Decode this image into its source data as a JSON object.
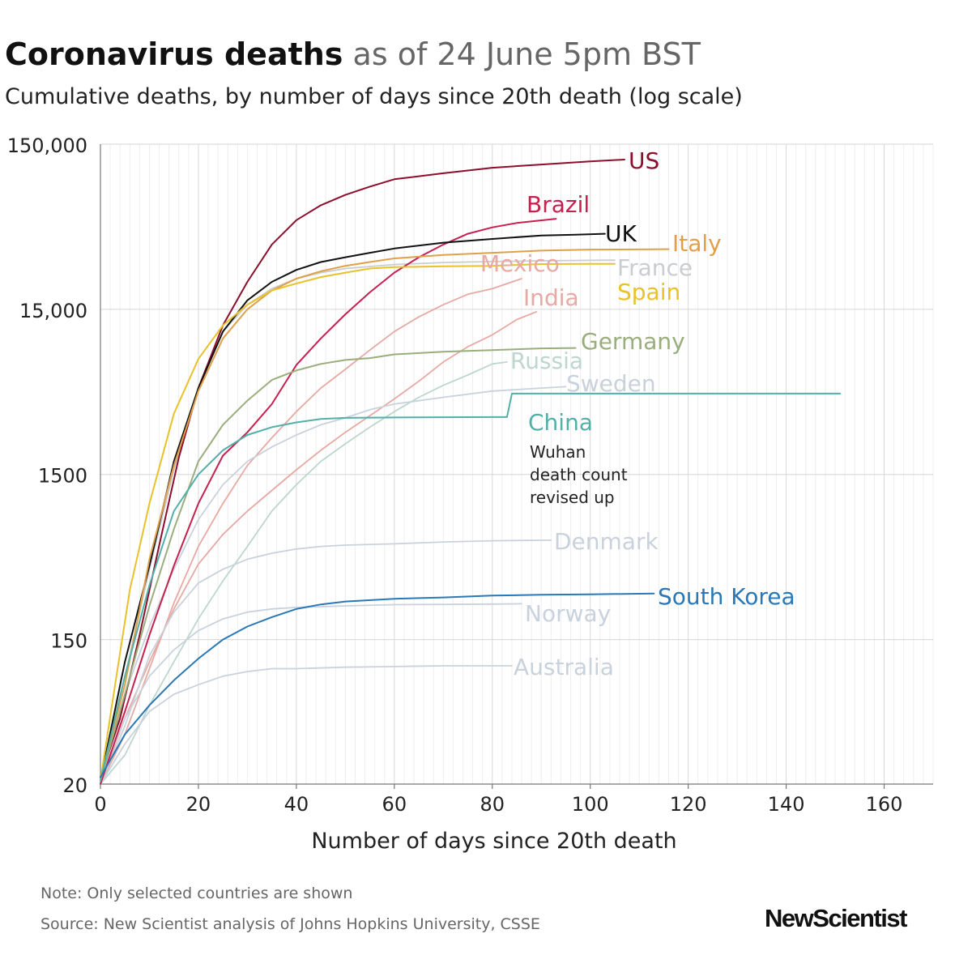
{
  "header": {
    "title_bold": "Coronavirus deaths",
    "title_light": "as of 24 June 5pm BST",
    "subtitle": "Cumulative deaths, by number of days since 20th death (log scale)"
  },
  "footer": {
    "note": "Note: Only selected countries are shown",
    "source": "Source: New Scientist analysis of Johns Hopkins University, CSSE",
    "logo": "NewScientist"
  },
  "chart_data": {
    "type": "line",
    "title": "Coronavirus deaths as of 24 June 5pm BST",
    "subtitle": "Cumulative deaths, by number of days since 20th death (log scale)",
    "xlabel": "Number of days since 20th death",
    "ylabel": "",
    "xlim": [
      0,
      170
    ],
    "ylim": [
      20,
      150000
    ],
    "yscale": "log",
    "x_ticks": [
      0,
      20,
      40,
      60,
      80,
      100,
      120,
      140,
      160
    ],
    "x_tick_labels": [
      "0",
      "20",
      "40",
      "60",
      "80",
      "100",
      "120",
      "140",
      "160"
    ],
    "y_ticks": [
      20,
      150,
      1500,
      15000,
      150000
    ],
    "y_tick_labels": [
      "20",
      "150",
      "1500",
      "15,000",
      "150,000"
    ],
    "grid": true,
    "annotation": "Wuhan death count revised up",
    "series": [
      {
        "name": "US",
        "color": "#8b0f2c",
        "highlight": true,
        "x": [
          0,
          4,
          8,
          12,
          16,
          20,
          25,
          30,
          35,
          40,
          45,
          50,
          55,
          60,
          70,
          80,
          90,
          100,
          107
        ],
        "values": [
          22,
          50,
          160,
          560,
          1900,
          5000,
          12000,
          22000,
          37000,
          52000,
          64000,
          74000,
          83000,
          92000,
          100000,
          108000,
          113000,
          118000,
          121000
        ]
      },
      {
        "name": "Brazil",
        "color": "#c6204f",
        "highlight": true,
        "x": [
          0,
          5,
          10,
          15,
          20,
          25,
          30,
          35,
          40,
          45,
          50,
          55,
          60,
          65,
          70,
          75,
          80,
          85,
          93
        ],
        "values": [
          20,
          55,
          160,
          420,
          1000,
          1950,
          2700,
          4000,
          6900,
          10000,
          14000,
          19000,
          25000,
          31000,
          37000,
          43000,
          47000,
          50000,
          53000
        ]
      },
      {
        "name": "UK",
        "color": "#111111",
        "highlight": true,
        "x": [
          0,
          5,
          10,
          15,
          20,
          25,
          30,
          35,
          40,
          45,
          50,
          55,
          60,
          70,
          80,
          90,
          97,
          103
        ],
        "values": [
          21,
          110,
          420,
          1800,
          5000,
          11000,
          17000,
          22000,
          26000,
          29000,
          31000,
          33000,
          35000,
          38000,
          40000,
          42000,
          42500,
          43000
        ]
      },
      {
        "name": "Italy",
        "color": "#e0a04a",
        "highlight": true,
        "x": [
          0,
          5,
          10,
          15,
          20,
          25,
          30,
          35,
          40,
          45,
          50,
          55,
          60,
          70,
          80,
          90,
          100,
          110,
          116
        ],
        "values": [
          21,
          80,
          460,
          1700,
          4800,
          10000,
          15000,
          19500,
          23000,
          25500,
          27500,
          29000,
          30500,
          32000,
          33000,
          34000,
          34500,
          34600,
          34700
        ]
      },
      {
        "name": "France",
        "color": "#c9cdd2",
        "highlight": false,
        "x": [
          0,
          5,
          10,
          15,
          20,
          25,
          30,
          35,
          40,
          45,
          50,
          60,
          70,
          80,
          90,
          100,
          105
        ],
        "values": [
          22,
          90,
          400,
          1600,
          5000,
          11000,
          16000,
          20000,
          23000,
          25000,
          26500,
          28000,
          28800,
          29200,
          29500,
          29700,
          29750
        ]
      },
      {
        "name": "Spain",
        "color": "#e8c22a",
        "highlight": true,
        "x": [
          0,
          3,
          6,
          10,
          15,
          20,
          25,
          30,
          35,
          40,
          45,
          50,
          55,
          60,
          70,
          80,
          90,
          100,
          105
        ],
        "values": [
          21,
          80,
          300,
          1000,
          3500,
          7500,
          12000,
          16000,
          19500,
          21500,
          23500,
          25000,
          26500,
          27000,
          27300,
          27500,
          28200,
          28300,
          28300
        ]
      },
      {
        "name": "Mexico",
        "color": "#e7a9a3",
        "highlight": false,
        "x": [
          0,
          5,
          10,
          15,
          20,
          25,
          30,
          35,
          40,
          45,
          50,
          55,
          60,
          65,
          70,
          75,
          80,
          86
        ],
        "values": [
          20,
          40,
          100,
          250,
          550,
          1000,
          1700,
          2500,
          3600,
          5000,
          6500,
          8500,
          11000,
          13500,
          16000,
          18500,
          20000,
          23000
        ]
      },
      {
        "name": "India",
        "color": "#e7a9a3",
        "highlight": false,
        "x": [
          0,
          5,
          10,
          15,
          20,
          25,
          30,
          35,
          40,
          45,
          50,
          55,
          60,
          65,
          70,
          75,
          80,
          85,
          89
        ],
        "values": [
          20,
          50,
          110,
          230,
          430,
          650,
          900,
          1200,
          1600,
          2100,
          2700,
          3400,
          4300,
          5500,
          7200,
          8900,
          10500,
          13000,
          14500
        ]
      },
      {
        "name": "Germany",
        "color": "#9aae7d",
        "highlight": true,
        "x": [
          0,
          5,
          10,
          15,
          20,
          25,
          30,
          35,
          40,
          45,
          50,
          55,
          60,
          70,
          80,
          90,
          97
        ],
        "values": [
          21,
          70,
          240,
          700,
          1800,
          3000,
          4200,
          5600,
          6400,
          7000,
          7400,
          7600,
          8000,
          8300,
          8500,
          8700,
          8750
        ]
      },
      {
        "name": "Russia",
        "color": "#bdd6cf",
        "highlight": false,
        "x": [
          0,
          5,
          10,
          15,
          20,
          25,
          30,
          35,
          40,
          45,
          50,
          55,
          60,
          65,
          70,
          75,
          80,
          83
        ],
        "values": [
          20,
          30,
          60,
          110,
          200,
          340,
          550,
          900,
          1300,
          1800,
          2300,
          2900,
          3600,
          4400,
          5200,
          6000,
          7000,
          7200
        ]
      },
      {
        "name": "Sweden",
        "color": "#c9d2dc",
        "highlight": false,
        "x": [
          0,
          5,
          10,
          15,
          20,
          25,
          30,
          35,
          40,
          45,
          50,
          55,
          60,
          70,
          80,
          90,
          95
        ],
        "values": [
          20,
          70,
          180,
          400,
          800,
          1300,
          1800,
          2200,
          2600,
          3000,
          3300,
          3700,
          4000,
          4400,
          4800,
          5000,
          5100
        ]
      },
      {
        "name": "China",
        "color": "#52b0a8",
        "highlight": true,
        "x": [
          0,
          5,
          10,
          15,
          20,
          25,
          30,
          35,
          40,
          45,
          50,
          60,
          70,
          80,
          83,
          84,
          85,
          100,
          120,
          140,
          151
        ],
        "values": [
          21,
          90,
          320,
          900,
          1500,
          2100,
          2600,
          2900,
          3100,
          3250,
          3300,
          3320,
          3330,
          3340,
          3340,
          4630,
          4630,
          4630,
          4630,
          4630,
          4630
        ]
      },
      {
        "name": "Denmark",
        "color": "#c9d2dc",
        "highlight": false,
        "x": [
          0,
          5,
          10,
          15,
          20,
          25,
          30,
          35,
          40,
          45,
          50,
          60,
          70,
          80,
          92
        ],
        "values": [
          20,
          45,
          120,
          220,
          330,
          400,
          460,
          500,
          530,
          550,
          560,
          570,
          585,
          595,
          600
        ]
      },
      {
        "name": "South Korea",
        "color": "#2a78b5",
        "highlight": true,
        "x": [
          0,
          5,
          10,
          15,
          20,
          25,
          30,
          35,
          40,
          45,
          50,
          60,
          70,
          80,
          90,
          100,
          113
        ],
        "values": [
          22,
          40,
          60,
          85,
          115,
          150,
          180,
          205,
          230,
          245,
          255,
          265,
          270,
          277,
          280,
          282,
          285
        ]
      },
      {
        "name": "Norway",
        "color": "#c9d2dc",
        "highlight": false,
        "x": [
          0,
          5,
          10,
          15,
          20,
          25,
          30,
          35,
          40,
          50,
          60,
          70,
          80,
          86
        ],
        "values": [
          21,
          50,
          90,
          130,
          170,
          200,
          220,
          230,
          235,
          240,
          244,
          245,
          246,
          247
        ]
      },
      {
        "name": "Australia",
        "color": "#c9d2dc",
        "highlight": false,
        "x": [
          0,
          5,
          10,
          15,
          20,
          25,
          30,
          35,
          40,
          50,
          60,
          70,
          80,
          84
        ],
        "values": [
          20,
          35,
          55,
          70,
          80,
          90,
          96,
          100,
          100,
          102,
          103,
          104,
          104,
          104
        ]
      }
    ],
    "labels": [
      {
        "text": "US",
        "color": "#8b0f2c"
      },
      {
        "text": "Brazil",
        "color": "#c6204f"
      },
      {
        "text": "UK",
        "color": "#111111"
      },
      {
        "text": "Italy",
        "color": "#e0a04a"
      },
      {
        "text": "Mexico",
        "color": "#e7a9a3"
      },
      {
        "text": "France",
        "color": "#c9cdd2"
      },
      {
        "text": "Spain",
        "color": "#e8c22a"
      },
      {
        "text": "India",
        "color": "#e7a9a3"
      },
      {
        "text": "Germany",
        "color": "#9aae7d"
      },
      {
        "text": "Russia",
        "color": "#bdd6cf"
      },
      {
        "text": "Sweden",
        "color": "#c9d2dc"
      },
      {
        "text": "China",
        "color": "#52b0a8"
      },
      {
        "text": "Denmark",
        "color": "#c9d2dc"
      },
      {
        "text": "South Korea",
        "color": "#2a78b5"
      },
      {
        "text": "Norway",
        "color": "#c9d2dc"
      },
      {
        "text": "Australia",
        "color": "#c9d2dc"
      }
    ]
  }
}
